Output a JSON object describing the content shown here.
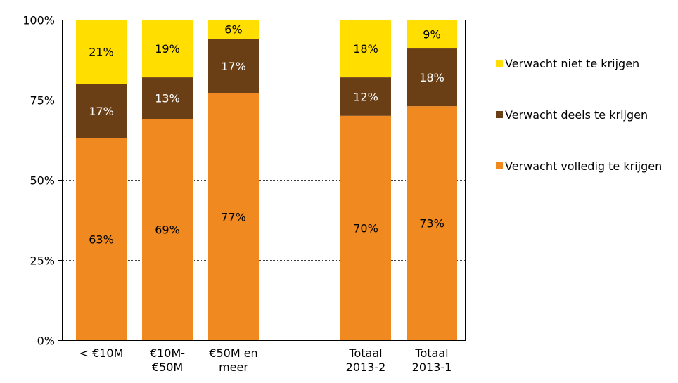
{
  "chart_data": {
    "type": "bar",
    "stacked": true,
    "percent": true,
    "categories": [
      [
        "< €10M"
      ],
      [
        "€10M-",
        "€50M"
      ],
      [
        "€50M en",
        "meer"
      ],
      [
        "Totaal",
        "2013-2"
      ],
      [
        "Totaal",
        "2013-1"
      ]
    ],
    "category_positions": [
      0,
      1,
      2,
      4,
      5
    ],
    "yticks": [
      "0%",
      "25%",
      "50%",
      "75%",
      "100%"
    ],
    "ylim": [
      0,
      100
    ],
    "grid": true,
    "legend_position": "right",
    "series": [
      {
        "name": "Verwacht volledig te krijgen",
        "color": "#F0891F",
        "values": [
          63,
          69,
          77,
          70,
          73
        ],
        "labels": [
          "63%",
          "69%",
          "77%",
          "70%",
          "73%"
        ],
        "label_color": "#000000"
      },
      {
        "name": "Verwacht deels te krijgen",
        "color": "#6B3F16",
        "values": [
          17,
          13,
          17,
          12,
          18
        ],
        "labels": [
          "17%",
          "13%",
          "17%",
          "12%",
          "18%"
        ],
        "label_color": "#FFFFFF"
      },
      {
        "name": "Verwacht niet te krijgen",
        "color": "#FFDE00",
        "values": [
          21,
          19,
          6,
          18,
          9
        ],
        "labels": [
          "21%",
          "19%",
          "6%",
          "18%",
          "9%"
        ],
        "label_color": "#000000"
      }
    ]
  }
}
